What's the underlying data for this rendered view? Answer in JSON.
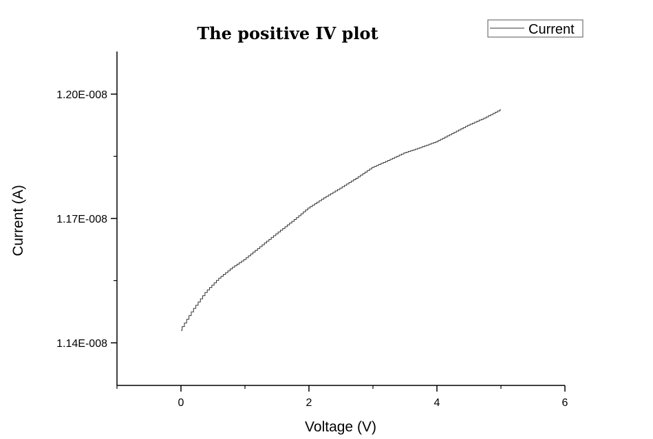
{
  "chart_data": {
    "type": "line",
    "title": "The positive IV plot",
    "xlabel": "Voltage (V)",
    "ylabel": "Current (A)",
    "xlim": [
      -1,
      6
    ],
    "ylim": [
      1.13e-08,
      1.21e-08
    ],
    "x_ticks": [
      0,
      2,
      4,
      6
    ],
    "x_tick_labels": [
      "0",
      "2",
      "4",
      "6"
    ],
    "x_minor_ticks": [
      -1,
      1,
      3,
      5
    ],
    "y_ticks": [
      1.14e-08,
      1.17e-08,
      1.2e-08
    ],
    "y_tick_labels": [
      "1.14E-008",
      "1.17E-008",
      "1.20E-008"
    ],
    "y_minor_ticks": [
      1.155e-08,
      1.185e-08
    ],
    "grid": false,
    "legend": {
      "position": "top-right",
      "entries": [
        "Current"
      ]
    },
    "series": [
      {
        "name": "Current",
        "color": "#333333",
        "style": "step",
        "x": [
          0,
          0.1,
          0.2,
          0.4,
          0.6,
          0.8,
          1.0,
          1.25,
          1.5,
          1.75,
          2.0,
          2.25,
          2.5,
          2.75,
          3.0,
          3.25,
          3.5,
          3.75,
          4.0,
          4.25,
          4.5,
          4.75,
          5.0
        ],
        "values": [
          1.143e-08,
          1.1455e-08,
          1.148e-08,
          1.1523e-08,
          1.1555e-08,
          1.158e-08,
          1.1601e-08,
          1.1632e-08,
          1.1663e-08,
          1.1693e-08,
          1.1725e-08,
          1.175e-08,
          1.1773e-08,
          1.1797e-08,
          1.1823e-08,
          1.184e-08,
          1.1858e-08,
          1.1871e-08,
          1.1885e-08,
          1.1905e-08,
          1.1925e-08,
          1.1942e-08,
          1.1962e-08
        ]
      }
    ]
  }
}
